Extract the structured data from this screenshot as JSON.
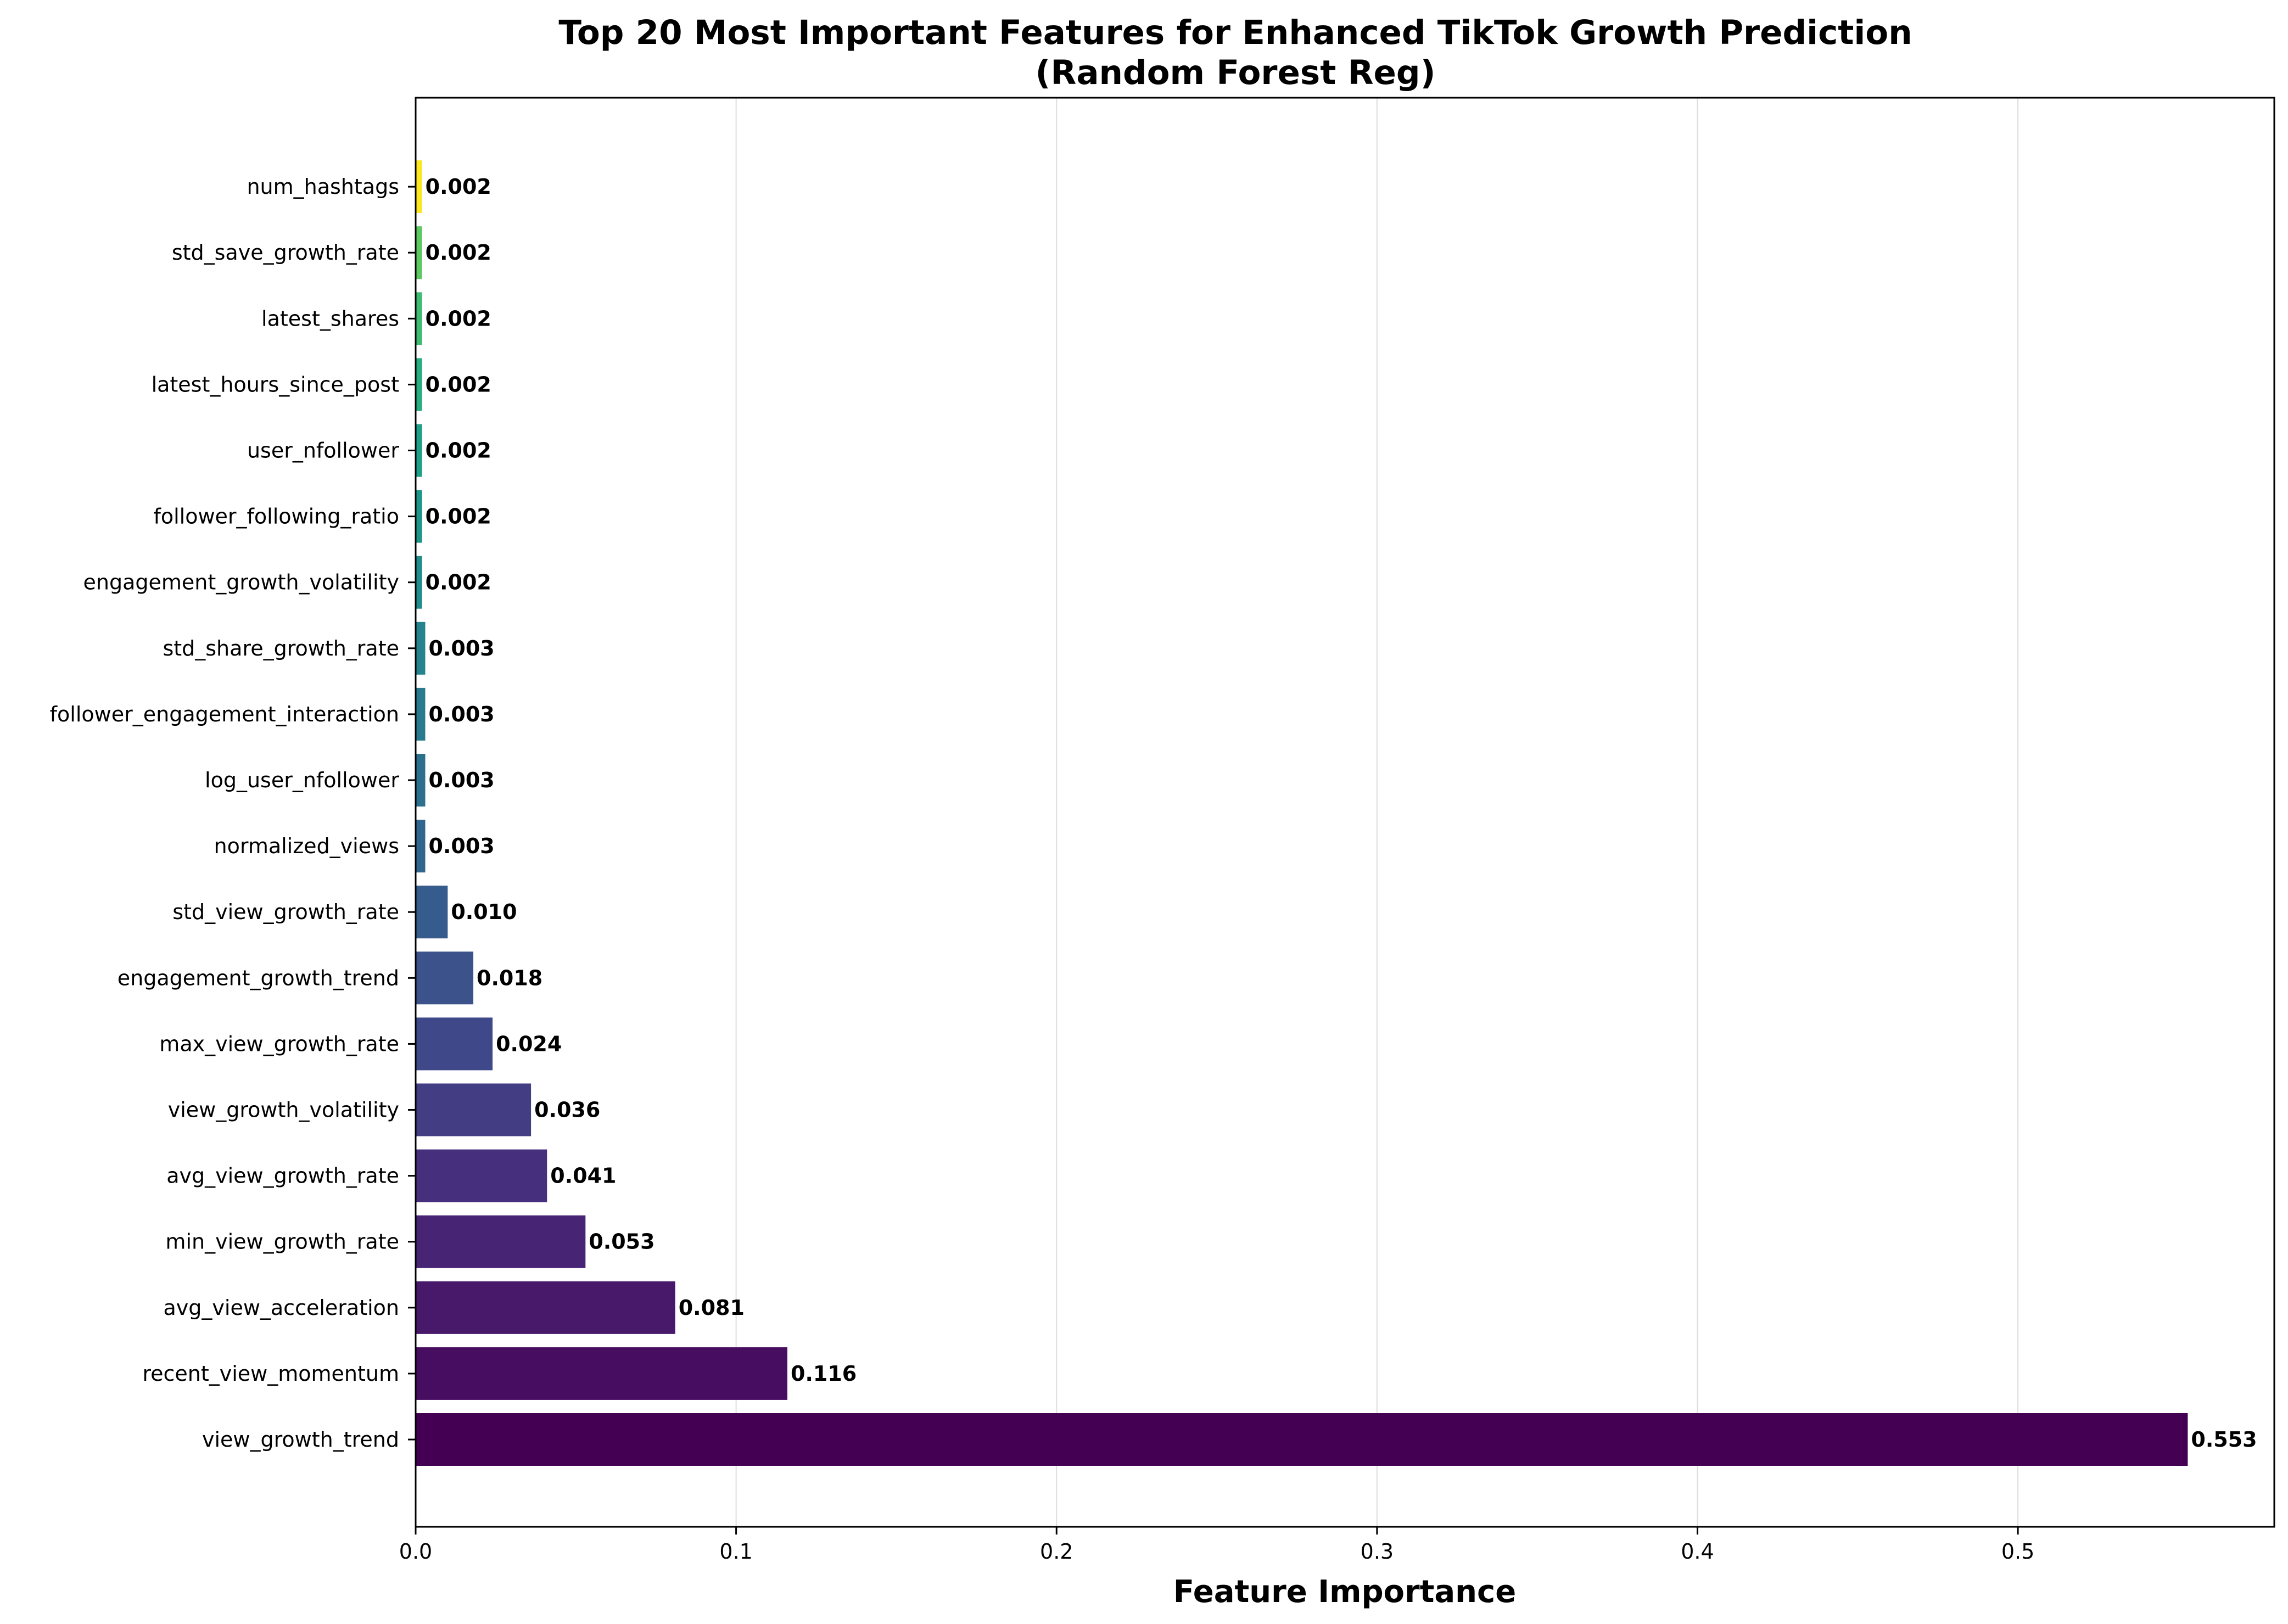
{
  "chart_data": {
    "type": "bar",
    "orientation": "horizontal",
    "title": "Top 20 Most Important Features for Enhanced TikTok Growth Prediction",
    "subtitle": "(Random Forest Reg)",
    "xlabel": "Feature Importance",
    "ylabel": "",
    "xlim": [
      0,
      0.58
    ],
    "xticks": [
      "0.0",
      "0.1",
      "0.2",
      "0.3",
      "0.4",
      "0.5"
    ],
    "xtick_values": [
      0.0,
      0.1,
      0.2,
      0.3,
      0.4,
      0.5
    ],
    "grid": "x",
    "colormap": "viridis",
    "categories": [
      "view_growth_trend",
      "recent_view_momentum",
      "avg_view_acceleration",
      "min_view_growth_rate",
      "avg_view_growth_rate",
      "view_growth_volatility",
      "max_view_growth_rate",
      "engagement_growth_trend",
      "std_view_growth_rate",
      "normalized_views",
      "log_user_nfollower",
      "follower_engagement_interaction",
      "std_share_growth_rate",
      "engagement_growth_volatility",
      "follower_following_ratio",
      "user_nfollower",
      "latest_hours_since_post",
      "latest_shares",
      "std_save_growth_rate",
      "num_hashtags"
    ],
    "values": [
      0.553,
      0.116,
      0.081,
      0.053,
      0.041,
      0.036,
      0.024,
      0.018,
      0.01,
      0.003,
      0.003,
      0.003,
      0.003,
      0.002,
      0.002,
      0.002,
      0.002,
      0.002,
      0.002,
      0.002
    ],
    "value_labels": [
      "0.553",
      "0.116",
      "0.081",
      "0.053",
      "0.041",
      "0.036",
      "0.024",
      "0.018",
      "0.010",
      "0.003",
      "0.003",
      "0.003",
      "0.003",
      "0.002",
      "0.002",
      "0.002",
      "0.002",
      "0.002",
      "0.002",
      "0.002"
    ],
    "colors": [
      "#440154",
      "#470d60",
      "#48196b",
      "#482475",
      "#46307e",
      "#433d84",
      "#3f4889",
      "#3b528b",
      "#365c8d",
      "#31668e",
      "#2d708e",
      "#297a8e",
      "#25838e",
      "#218d8d",
      "#1e978a",
      "#1fa088",
      "#28ae80",
      "#3fbc73",
      "#5ec962",
      "#fde725"
    ]
  }
}
